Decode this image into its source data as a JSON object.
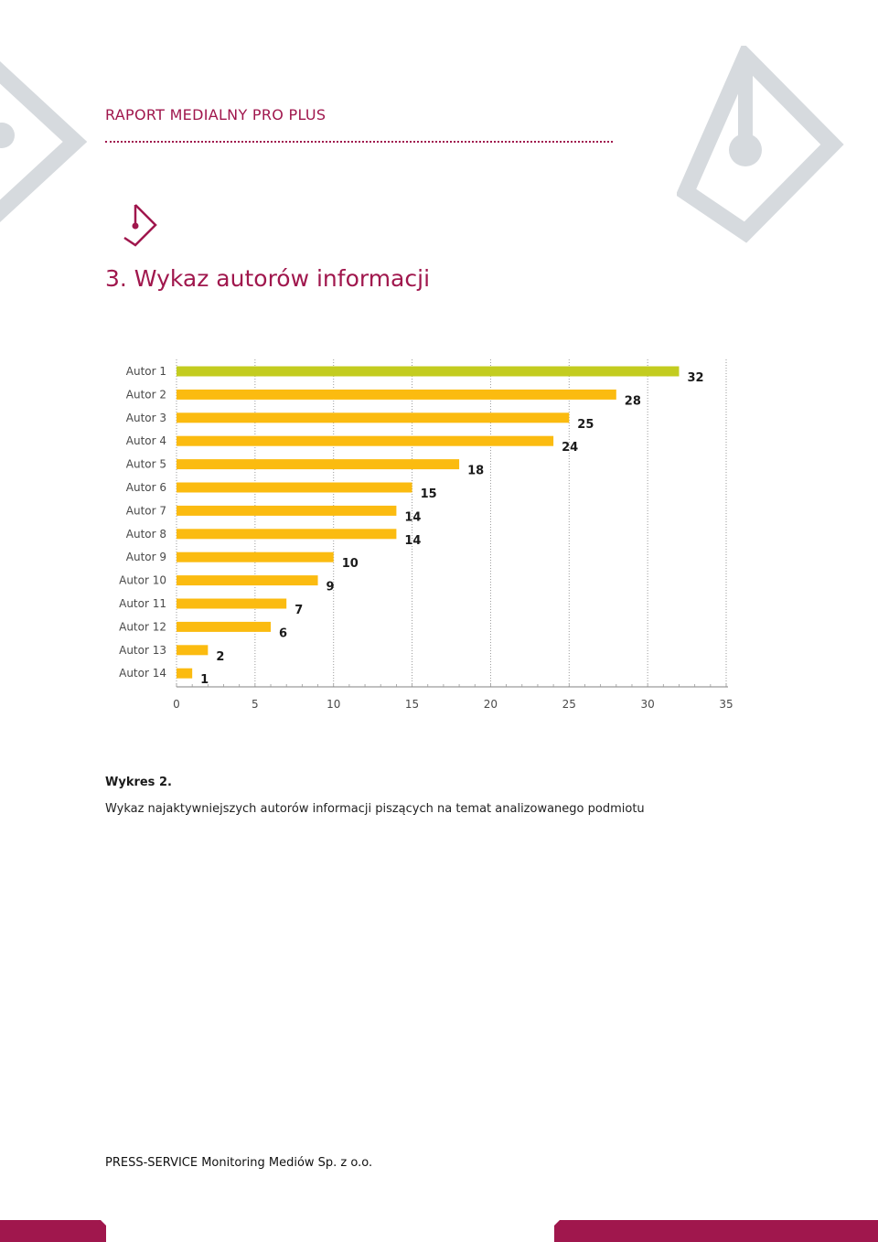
{
  "header": {
    "title": "RAPORT MEDIALNY PRO PLUS"
  },
  "section": {
    "title": "3. Wykaz autorów informacji"
  },
  "chart_data": {
    "type": "bar",
    "orientation": "horizontal",
    "categories": [
      "Autor 1",
      "Autor 2",
      "Autor 3",
      "Autor 4",
      "Autor 5",
      "Autor 6",
      "Autor 7",
      "Autor 8",
      "Autor 9",
      "Autor 10",
      "Autor 11",
      "Autor 12",
      "Autor 13",
      "Autor 14"
    ],
    "values": [
      32,
      28,
      25,
      24,
      18,
      15,
      14,
      14,
      10,
      9,
      7,
      6,
      2,
      1
    ],
    "xlim": [
      0,
      35
    ],
    "xticks": [
      0,
      5,
      10,
      15,
      20,
      25,
      30,
      35
    ],
    "grid": true,
    "data_labels": true,
    "colors": {
      "top_bar": "#c3cc1f",
      "bar": "#fbbb10",
      "grid": "#9a9a9a"
    }
  },
  "caption": {
    "title": "Wykres 2.",
    "text": "Wykaz najaktywniejszych autorów informacji piszących na temat analizowanego podmiotu"
  },
  "footer": {
    "company": "PRESS-SERVICE Monitoring Mediów Sp. z o.o."
  },
  "colors": {
    "accent": "#a0174d",
    "decor_gray": "#d6dade"
  }
}
